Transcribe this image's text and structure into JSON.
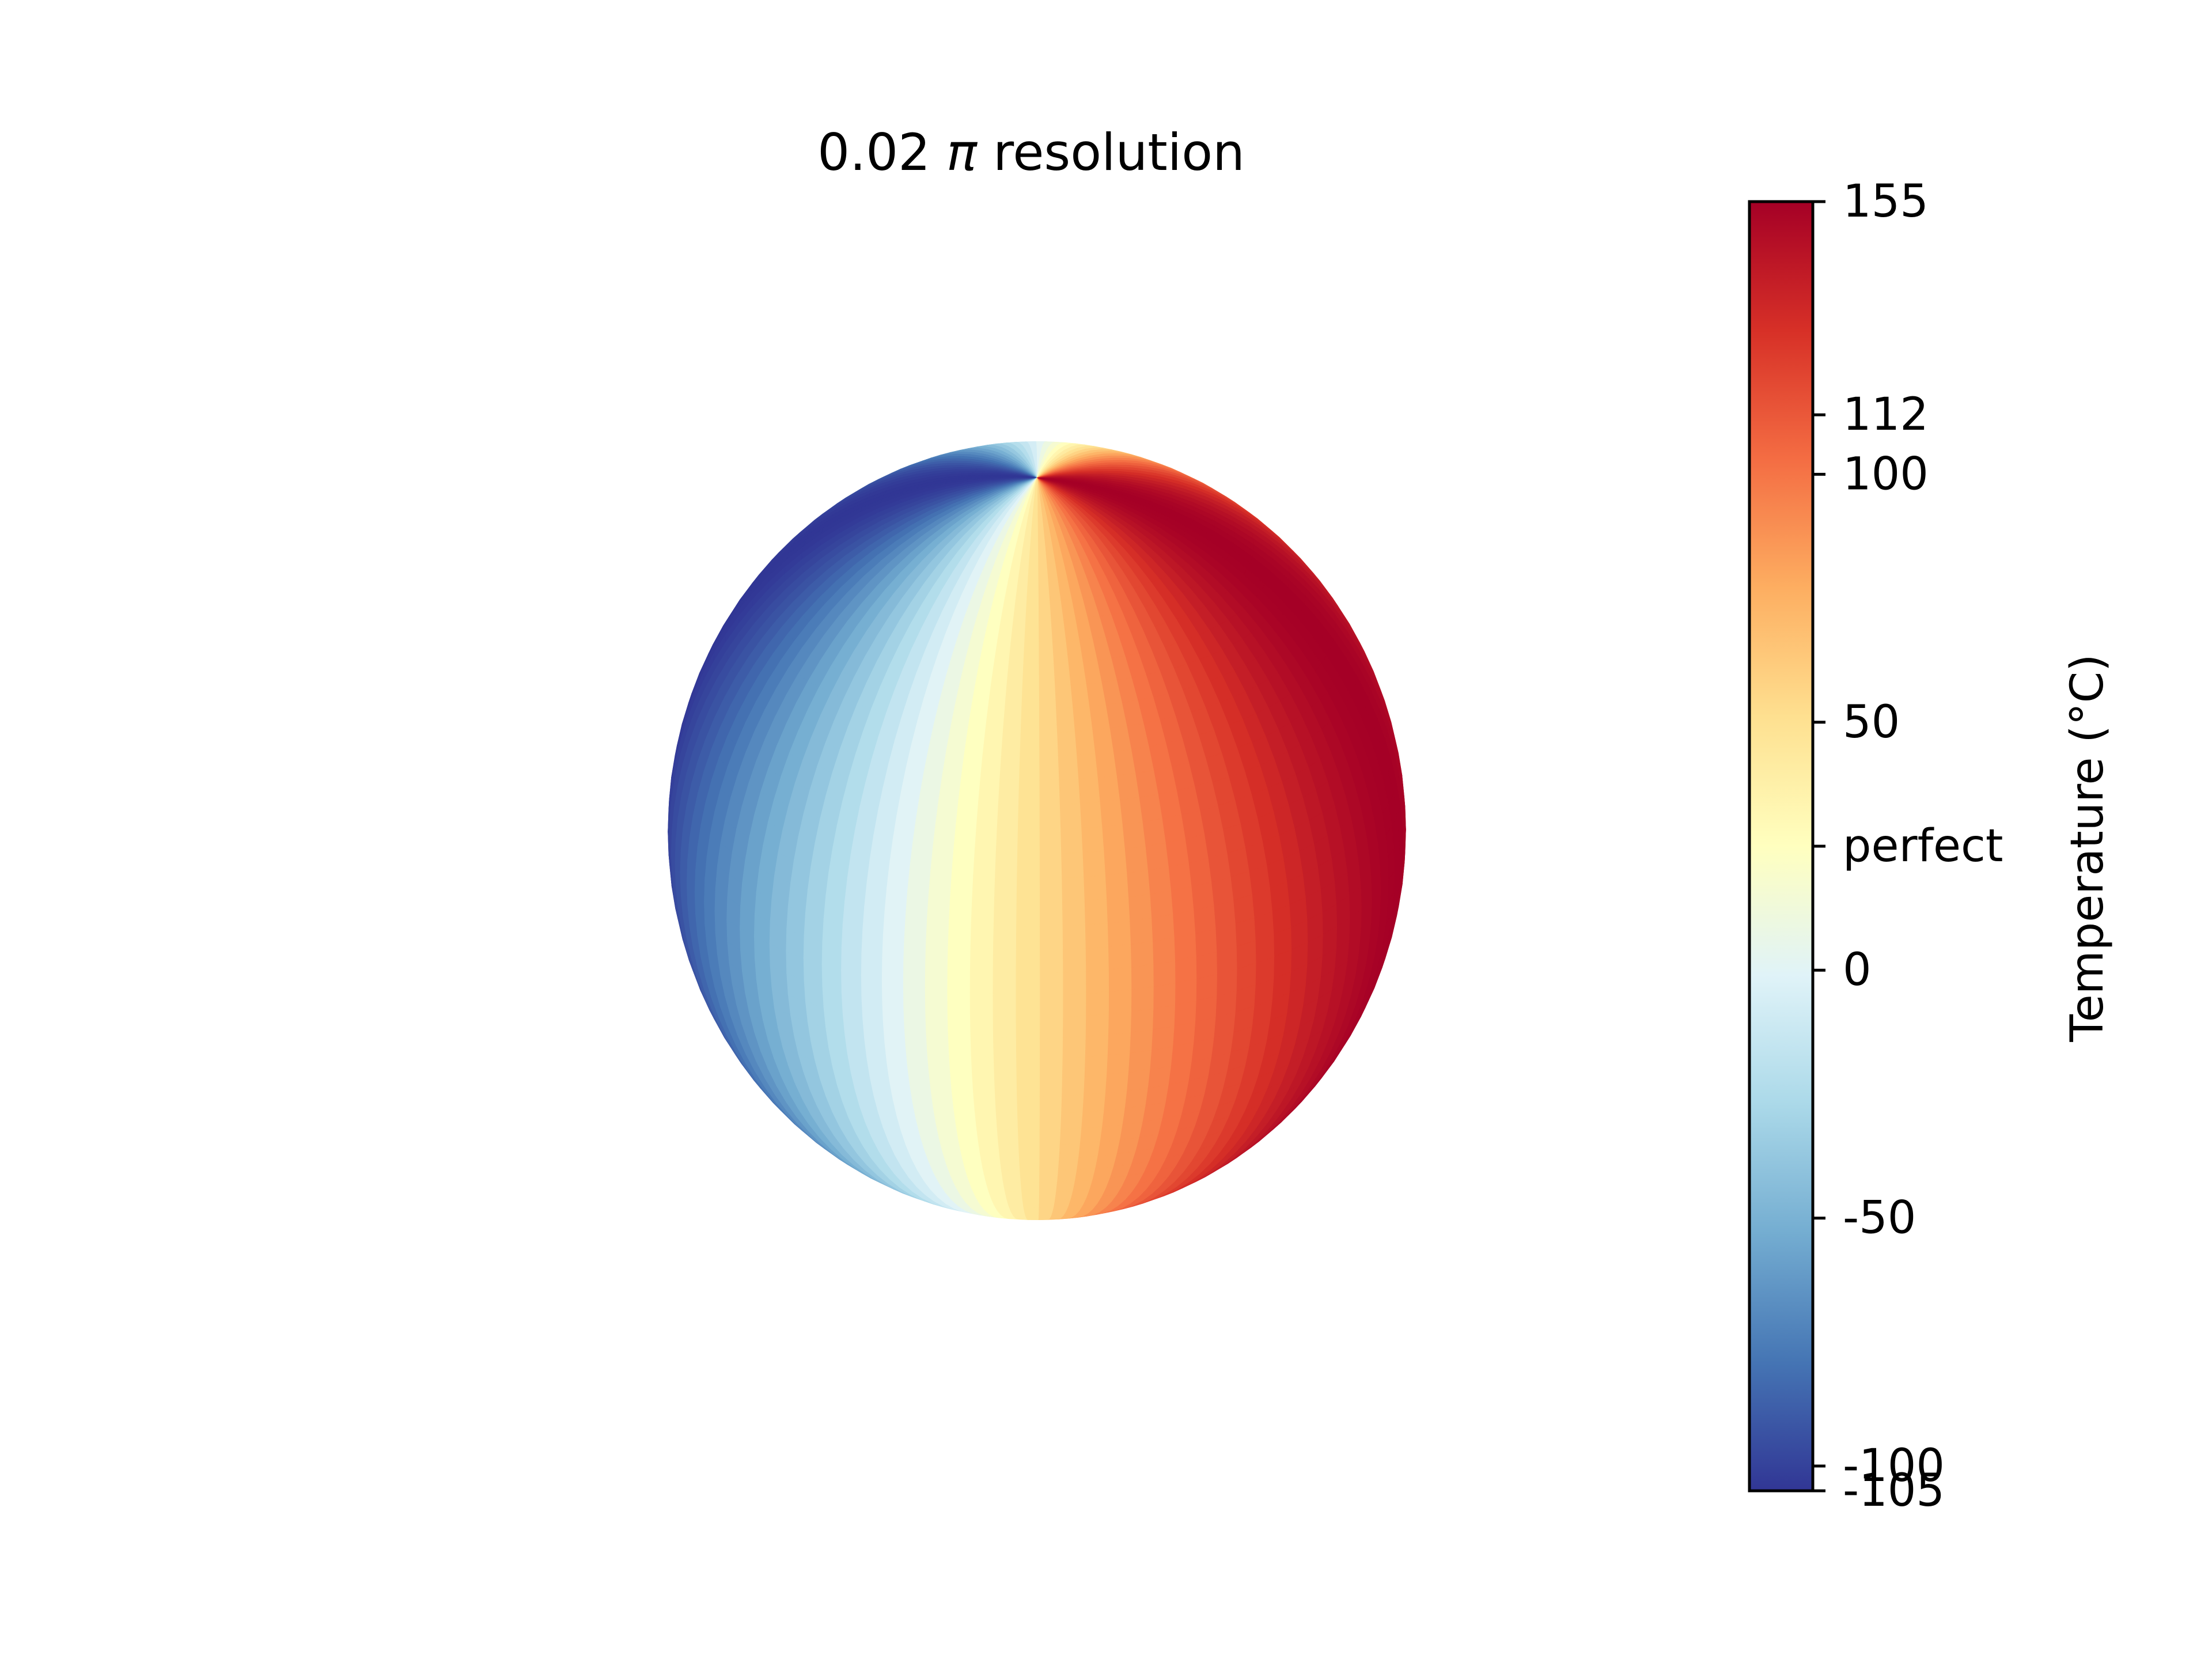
{
  "chart_data": {
    "type": "surface",
    "title": {
      "prefix": "0.02 ",
      "symbol": "π",
      "suffix": " resolution"
    },
    "surface": {
      "shape": "sphere",
      "resolution_fraction_of_pi": 0.02,
      "colormap": "RdYlBu_r",
      "view": {
        "elevation_deg": 25,
        "azimuth_deg": -58
      },
      "coloring": "longitude bands (temperature varies with longitude)"
    },
    "colorbar": {
      "label": "Temperature (°C)",
      "vmin": -105,
      "vmax": 155,
      "ticks": [
        {
          "value": 155,
          "label": "155"
        },
        {
          "value": 112,
          "label": "112"
        },
        {
          "value": 100,
          "label": "100"
        },
        {
          "value": 50,
          "label": "50"
        },
        {
          "value": 25,
          "label": "perfect"
        },
        {
          "value": 0,
          "label": "0"
        },
        {
          "value": -50,
          "label": "-50"
        },
        {
          "value": -100,
          "label": "-100"
        },
        {
          "value": -105,
          "label": "-105"
        }
      ],
      "colors": [
        "#313695",
        "#4575b4",
        "#74add1",
        "#abd9e9",
        "#e0f3f8",
        "#ffffbf",
        "#fee090",
        "#fdae61",
        "#f46d43",
        "#d73027",
        "#a50026"
      ]
    }
  }
}
